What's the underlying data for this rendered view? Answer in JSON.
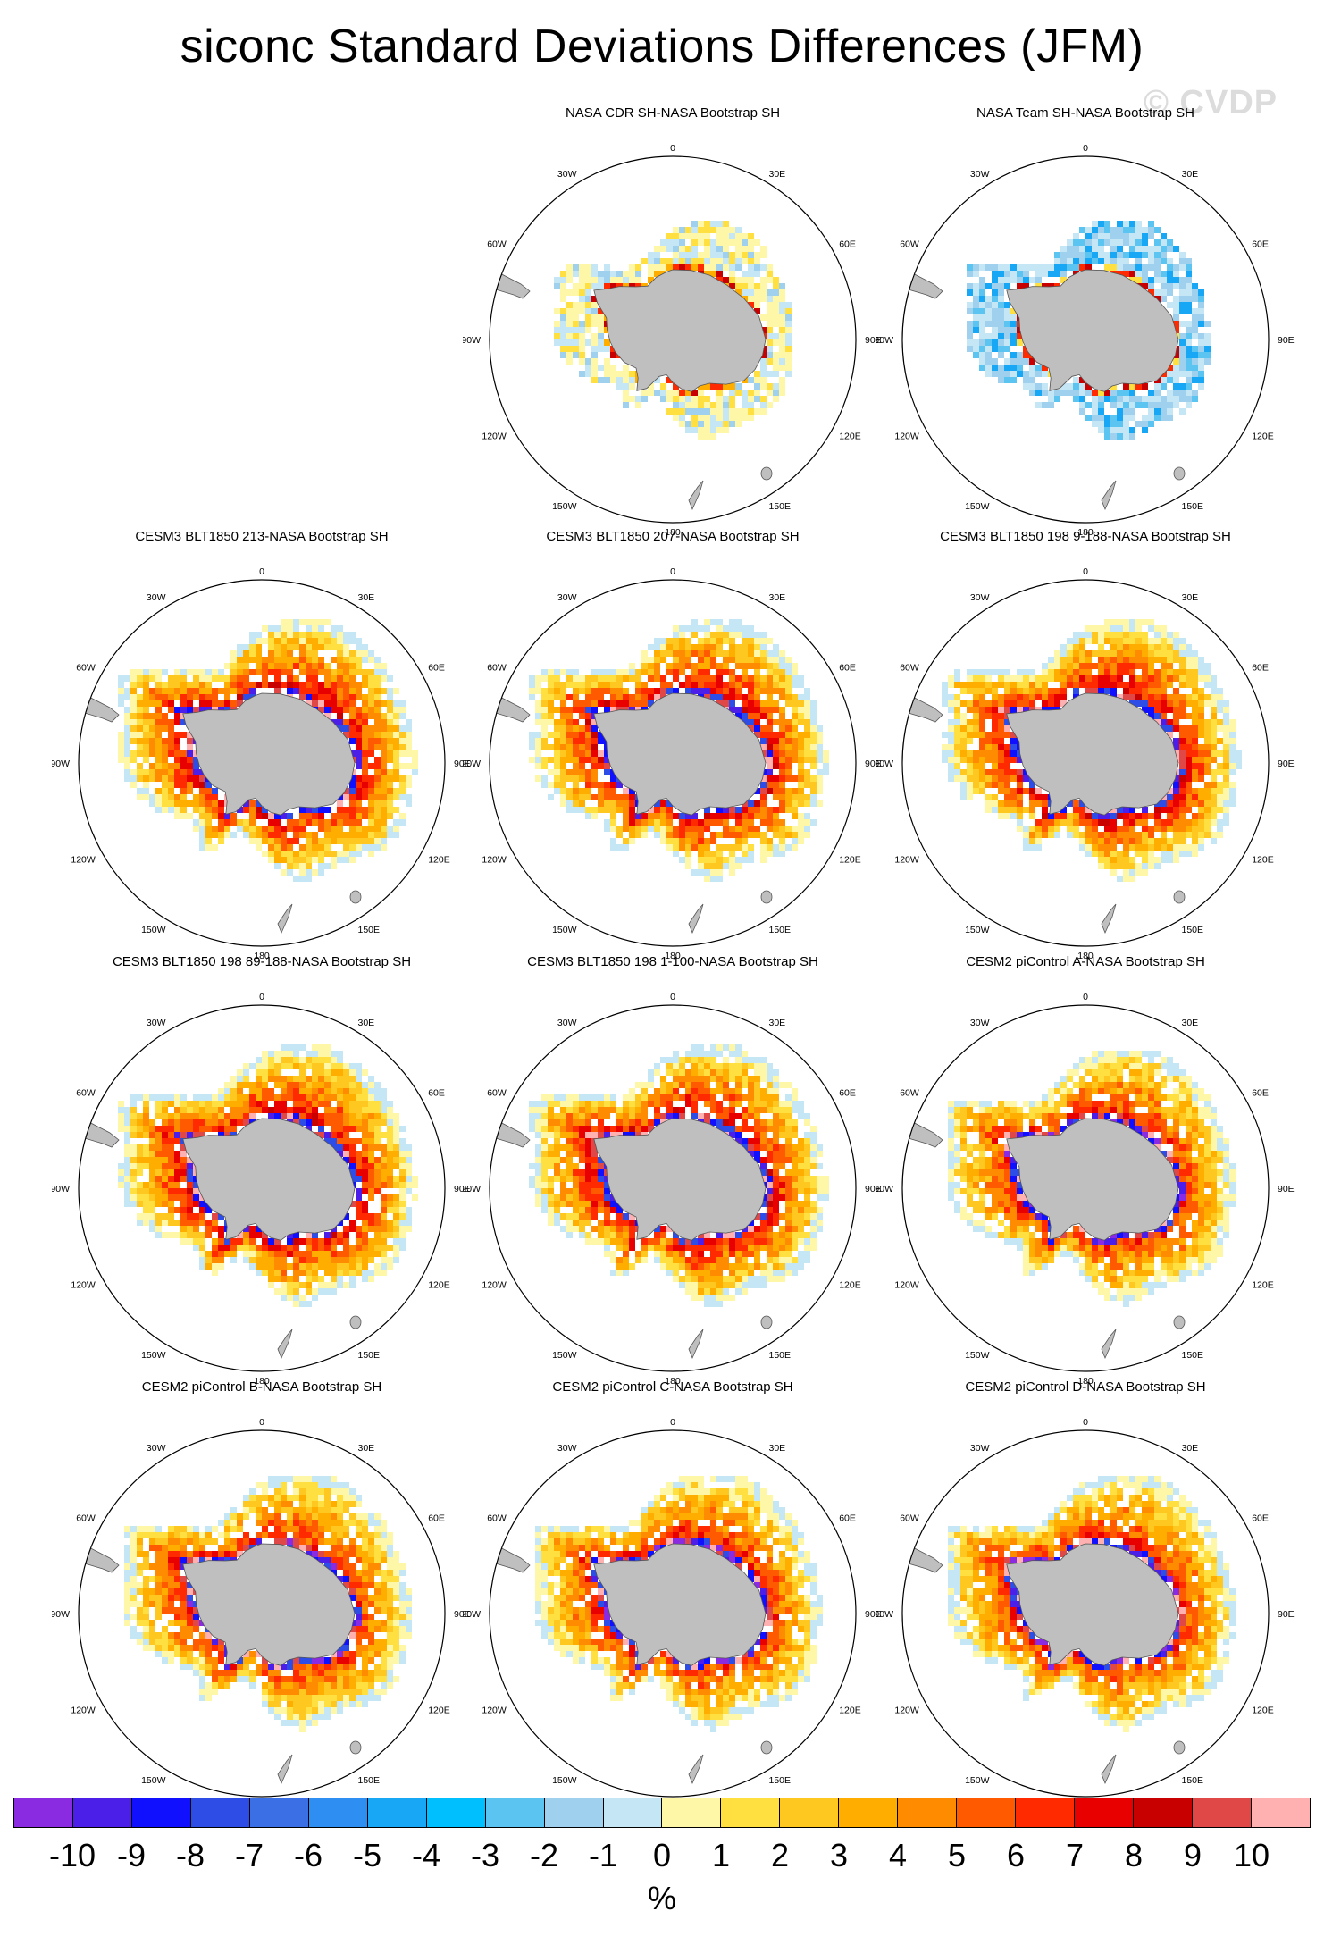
{
  "title": "siconc Standard Deviations Differences (JFM)",
  "watermark": "© CVDP",
  "longitude_labels": {
    "top": "0",
    "e30": "30E",
    "e60": "60E",
    "e90": "90E",
    "e120": "120E",
    "e150": "150E",
    "bottom": "180",
    "w150": "150W",
    "w120": "120W",
    "w90": "90W",
    "w60": "60W",
    "w30": "30W"
  },
  "panels": [
    {
      "title": "",
      "empty": true
    },
    {
      "title": "NASA CDR SH-NASA Bootstrap SH",
      "style": "obs_a"
    },
    {
      "title": "NASA Team SH-NASA Bootstrap SH",
      "style": "obs_b"
    },
    {
      "title": "CESM3 BLT1850 213-NASA Bootstrap SH",
      "style": "model"
    },
    {
      "title": "CESM3 BLT1850 207-NASA Bootstrap SH",
      "style": "model"
    },
    {
      "title": "CESM3 BLT1850 198 9-188-NASA Bootstrap SH",
      "style": "model"
    },
    {
      "title": "CESM3 BLT1850 198 89-188-NASA Bootstrap SH",
      "style": "model"
    },
    {
      "title": "CESM3 BLT1850 198 1-100-NASA Bootstrap SH",
      "style": "model"
    },
    {
      "title": "CESM2 piControl A-NASA Bootstrap SH",
      "style": "model2"
    },
    {
      "title": "CESM2 piControl B-NASA Bootstrap SH",
      "style": "model2"
    },
    {
      "title": "CESM2 piControl C-NASA Bootstrap SH",
      "style": "model2"
    },
    {
      "title": "CESM2 piControl D-NASA Bootstrap SH",
      "style": "model2"
    }
  ],
  "colorbar": {
    "colors": [
      "#8a2be2",
      "#4b1fe8",
      "#1010ff",
      "#2e4ce6",
      "#3a6fe6",
      "#2f8ef2",
      "#18a7f5",
      "#00bfff",
      "#5cc4f0",
      "#9fd0ee",
      "#c5e6f5",
      "#fff7a8",
      "#ffe040",
      "#ffc820",
      "#ffae00",
      "#ff8c00",
      "#ff5a00",
      "#ff2a00",
      "#e80000",
      "#c80000",
      "#e04848",
      "#ffb0b0"
    ],
    "labels": [
      "-10",
      "-9",
      "-8",
      "-7",
      "-6",
      "-5",
      "-4",
      "-3",
      "-2",
      "-1",
      "0",
      "1",
      "2",
      "3",
      "4",
      "5",
      "6",
      "7",
      "8",
      "9",
      "10"
    ],
    "units": "%"
  }
}
